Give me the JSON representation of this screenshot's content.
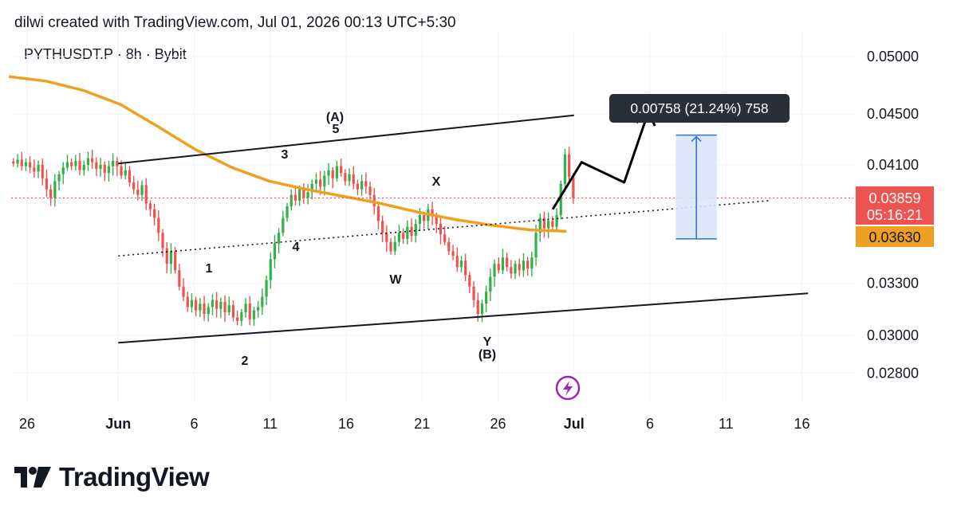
{
  "header": {
    "attribution": "dilwi created with TradingView.com, Jul 01, 2026 00:13 UTC+5:30",
    "symbol": "PYTHUSDT.P · 8h · Bybit"
  },
  "brand": {
    "name": "TradingView"
  },
  "colors": {
    "up": "#26a69a",
    "up_fill": "#33b04a",
    "down": "#ef5350",
    "ma": "#f0a020",
    "projection_fill": "#dbe6fb",
    "projection_line": "#2f6de1",
    "price_line": "#ef5350"
  },
  "chart_data": {
    "type": "candlestick",
    "timeframe": "8h",
    "x_ticks": [
      "26",
      "Jun",
      "6",
      "11",
      "16",
      "21",
      "26",
      "Jul",
      "6",
      "11",
      "16"
    ],
    "y_ticks": [
      "0.05000",
      "0.04500",
      "0.04100",
      "0.03300",
      "0.03000",
      "0.02800"
    ],
    "ylim": [
      0.0272,
      0.0515
    ],
    "scale": "log",
    "series_close_path": [
      0.0411,
      0.0414,
      0.0409,
      0.0412,
      0.0408,
      0.0405,
      0.041,
      0.04,
      0.0392,
      0.0386,
      0.0398,
      0.0403,
      0.0408,
      0.0412,
      0.0409,
      0.0413,
      0.0406,
      0.041,
      0.0415,
      0.0412,
      0.0407,
      0.041,
      0.0404,
      0.0409,
      0.0413,
      0.0409,
      0.0402,
      0.0406,
      0.0397,
      0.0392,
      0.0388,
      0.0395,
      0.0382,
      0.0378,
      0.0372,
      0.0362,
      0.0352,
      0.0342,
      0.035,
      0.0338,
      0.0328,
      0.0322,
      0.0316,
      0.032,
      0.0314,
      0.0318,
      0.0312,
      0.0316,
      0.032,
      0.0315,
      0.0319,
      0.0313,
      0.0317,
      0.031,
      0.0308,
      0.0313,
      0.0318,
      0.0309,
      0.0314,
      0.0316,
      0.0322,
      0.0332,
      0.0345,
      0.0355,
      0.0362,
      0.0372,
      0.038,
      0.0388,
      0.0384,
      0.0392,
      0.0386,
      0.039,
      0.0396,
      0.0399,
      0.0394,
      0.0402,
      0.0406,
      0.04,
      0.0409,
      0.0404,
      0.0398,
      0.0403,
      0.0396,
      0.0392,
      0.0398,
      0.0394,
      0.0388,
      0.038,
      0.037,
      0.0362,
      0.0356,
      0.035,
      0.0356,
      0.0362,
      0.0358,
      0.0366,
      0.036,
      0.0368,
      0.0374,
      0.037,
      0.0378,
      0.0373,
      0.0368,
      0.0361,
      0.0356,
      0.035,
      0.0347,
      0.034,
      0.0344,
      0.0335,
      0.0328,
      0.032,
      0.0312,
      0.0318,
      0.0325,
      0.0334,
      0.0342,
      0.0338,
      0.0346,
      0.034,
      0.0336,
      0.0342,
      0.0338,
      0.0344,
      0.0339,
      0.0346,
      0.0362,
      0.0372,
      0.0365,
      0.037,
      0.0366,
      0.0374,
      0.0396,
      0.0418,
      0.0401,
      0.0386
    ],
    "moving_average": [
      0.0482,
      0.0478,
      0.047,
      0.0458,
      0.044,
      0.0422,
      0.0408,
      0.0398,
      0.0392,
      0.0387,
      0.0382,
      0.0376,
      0.0371,
      0.0367,
      0.0364,
      0.0363
    ],
    "last_price": "0.03859",
    "countdown": "05:16:21",
    "ma_value": "0.03630",
    "wave_labels": [
      "1",
      "2",
      "3",
      "4",
      "(A)",
      "5",
      "W",
      "X",
      "Y",
      "(B)"
    ],
    "projection_label": "0.00758 (21.24%) 758"
  }
}
